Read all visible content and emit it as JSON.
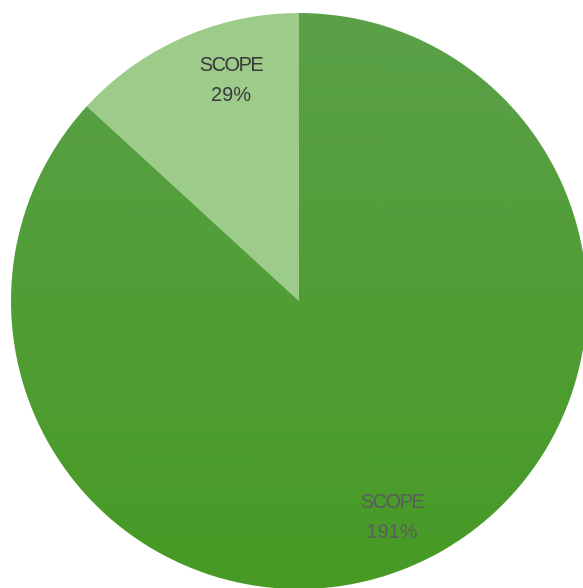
{
  "chart_data": {
    "type": "pie",
    "title": "",
    "start_angle_deg": 0,
    "direction": "clockwise",
    "slices": [
      {
        "label": "SCOPE",
        "value_text": "191%",
        "value": 191,
        "color": "#469a24",
        "color_top": "#5aa048",
        "label_color": "#5c5c5c"
      },
      {
        "label": "SCOPE",
        "value_text": "29%",
        "value": 29,
        "color": "#9ccb8a",
        "label_color": "#3a3a3a"
      }
    ]
  }
}
